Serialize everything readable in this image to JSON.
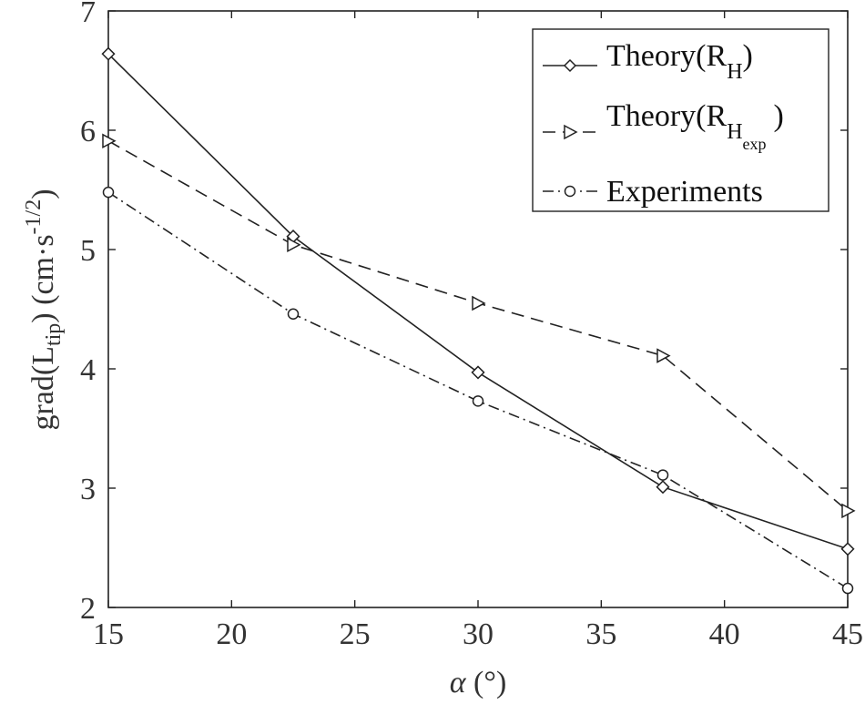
{
  "chart_data": {
    "type": "line",
    "xlabel": "α (°)",
    "ylabel": "grad(Ltip) (cm·s−1/2)",
    "xlim": [
      15,
      45
    ],
    "ylim": [
      2,
      7
    ],
    "xticks": [
      15,
      20,
      25,
      30,
      35,
      40,
      45
    ],
    "yticks": [
      2,
      3,
      4,
      5,
      6,
      7
    ],
    "grid": false,
    "legend_position": "top-right",
    "x": [
      15,
      22.5,
      30,
      37.5,
      45
    ],
    "series": [
      {
        "name": "Theory(RH)",
        "line_style": "solid",
        "marker": "diamond",
        "values": [
          6.64,
          5.11,
          3.97,
          3.01,
          2.49
        ]
      },
      {
        "name": "Theory(RHexp)",
        "line_style": "dashed",
        "marker": "triangle-right",
        "values": [
          5.91,
          5.04,
          4.55,
          4.11,
          2.81
        ]
      },
      {
        "name": "Experiments",
        "line_style": "dashdot",
        "marker": "circle",
        "values": [
          5.48,
          4.46,
          3.73,
          3.11,
          2.16
        ]
      }
    ]
  },
  "legend": {
    "entries": [
      {
        "main": "Theory(R",
        "sub": "H",
        "subsub": "",
        "close": ")"
      },
      {
        "main": "Theory(R",
        "sub": "H",
        "subsub": "exp",
        "close": ")"
      },
      {
        "main": "Experiments",
        "sub": "",
        "subsub": "",
        "close": ""
      }
    ]
  },
  "axis_titles": {
    "x_symbol": "α",
    "x_unit": " (°)",
    "y_main": "grad(L",
    "y_sub": "tip",
    "y_close": ")",
    "y_unit_open": "  (cm·s",
    "y_unit_sup": "-1/2",
    "y_unit_close": ")"
  },
  "colors": {
    "line": "#222222",
    "axis": "#222222",
    "text": "#333333"
  }
}
